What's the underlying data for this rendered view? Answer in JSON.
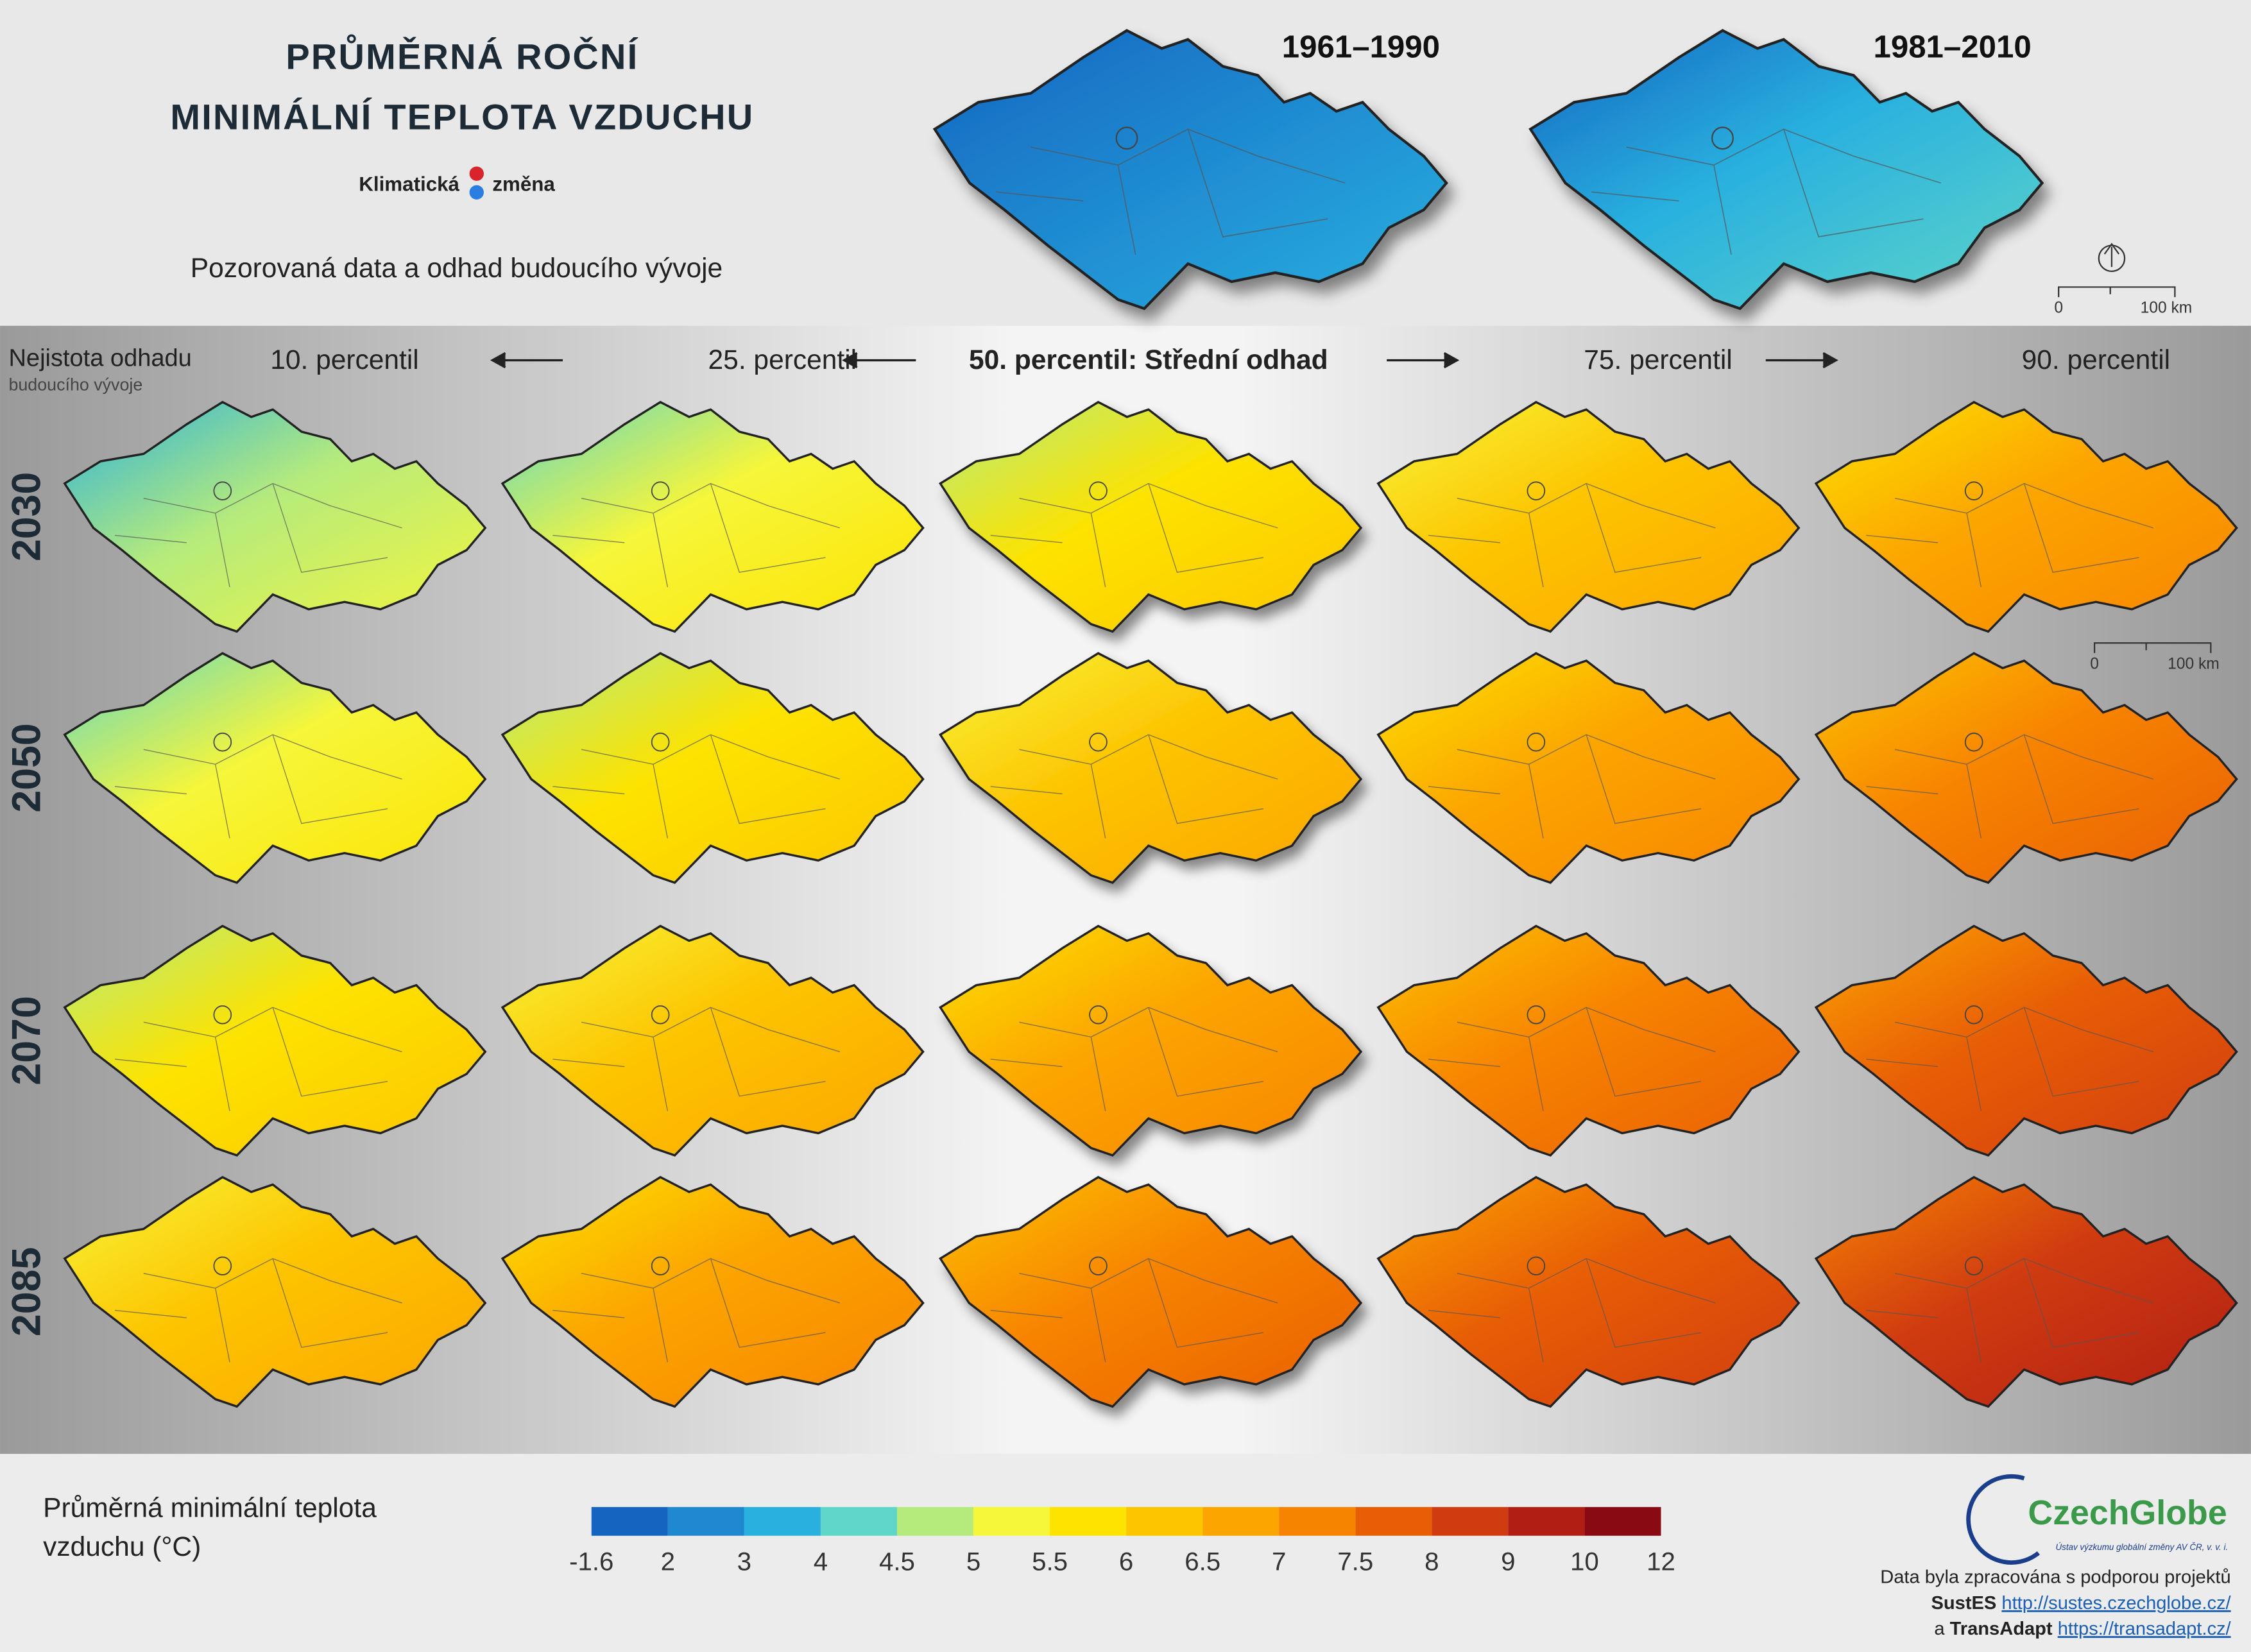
{
  "header": {
    "title_lines": [
      "PRŮMĚRNÁ ROČNÍ",
      "MINIMÁLNÍ TEPLOTA VZDUCHU"
    ],
    "logo": [
      "Klimatická",
      "změna"
    ],
    "subtitle": "Pozorovaná data a odhad budoucího vývoje"
  },
  "periods": [
    "1961–1990",
    "1981–2010"
  ],
  "scalebar": [
    "0",
    "100 km"
  ],
  "uncertainty": [
    "Nejistota odhadu",
    "budoucího vývoje"
  ],
  "percentiles": [
    "10. percentil",
    "25. percentil",
    "50. percentil: Střední odhad",
    "75. percentil",
    "90. percentil"
  ],
  "years": [
    "2030",
    "2050",
    "2070",
    "2085"
  ],
  "legend": {
    "title_lines": [
      "Průměrná minimální teplota",
      "vzduchu (°C)"
    ],
    "colors": [
      "#1565c0",
      "#1e88d0",
      "#29b0df",
      "#5fd6c8",
      "#b5eb7c",
      "#f6f63a",
      "#fde300",
      "#fdc400",
      "#fca500",
      "#f78400",
      "#e85e05",
      "#d03c10",
      "#b01e14",
      "#8a0a14"
    ],
    "ticks": [
      -1.6,
      2,
      3,
      4,
      4.5,
      5,
      5.5,
      6,
      6.5,
      7,
      7.5,
      8,
      9,
      10,
      12
    ]
  },
  "footer": {
    "org": "CzechGlobe",
    "org_subtitle": "Ústav výzkumu globální změny AV ČR, v. v. i.",
    "credit": "Data byla zpracována s podporou projektů",
    "projects": [
      {
        "prefix": "",
        "name": "SustES",
        "url": "http://sustes.czechglobe.cz/"
      },
      {
        "prefix": "a",
        "name": "TransAdapt",
        "url": "https://transadapt.cz/"
      }
    ]
  }
}
